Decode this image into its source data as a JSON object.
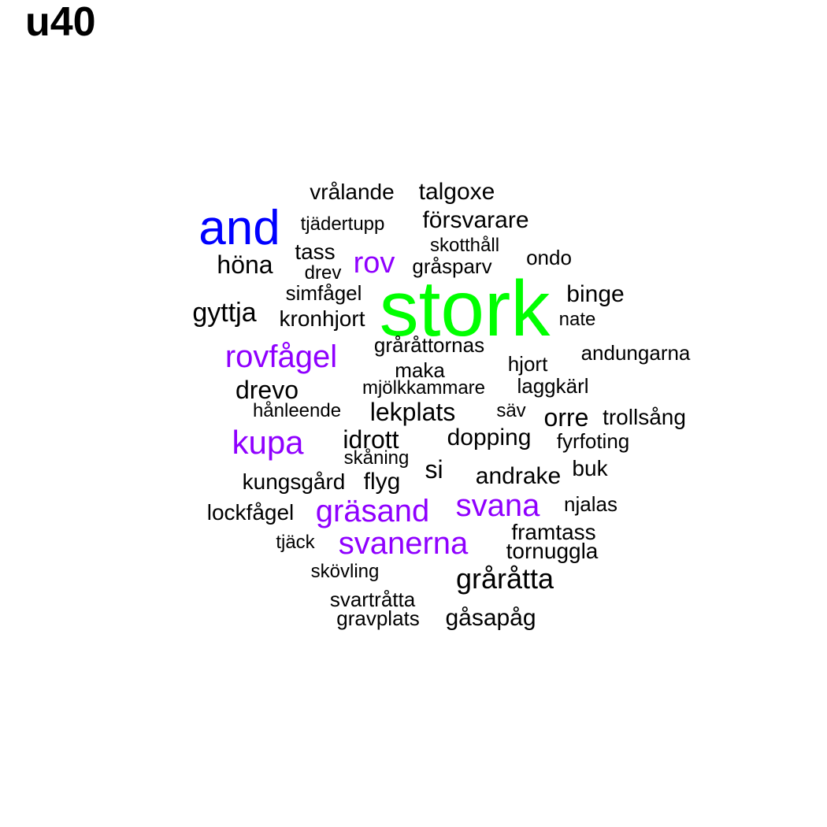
{
  "title": "u40",
  "colors": {
    "black": "#000000",
    "green": "#00ff00",
    "blue": "#0000ff",
    "purple": "#8f00ff"
  },
  "words": [
    {
      "text": "stork",
      "color": "green"
    },
    {
      "text": "and",
      "color": "blue"
    },
    {
      "text": "rov",
      "color": "purple"
    },
    {
      "text": "rovfågel",
      "color": "purple"
    },
    {
      "text": "kupa",
      "color": "purple"
    },
    {
      "text": "svana",
      "color": "purple"
    },
    {
      "text": "gräsand",
      "color": "purple"
    },
    {
      "text": "svanerna",
      "color": "purple"
    },
    {
      "text": "vrålande",
      "color": "black"
    },
    {
      "text": "talgoxe",
      "color": "black"
    },
    {
      "text": "tjädertupp",
      "color": "black"
    },
    {
      "text": "försvarare",
      "color": "black"
    },
    {
      "text": "skotthåll",
      "color": "black"
    },
    {
      "text": "tass",
      "color": "black"
    },
    {
      "text": "höna",
      "color": "black"
    },
    {
      "text": "drev",
      "color": "black"
    },
    {
      "text": "gråsparv",
      "color": "black"
    },
    {
      "text": "ondo",
      "color": "black"
    },
    {
      "text": "simfågel",
      "color": "black"
    },
    {
      "text": "binge",
      "color": "black"
    },
    {
      "text": "gyttja",
      "color": "black"
    },
    {
      "text": "kronhjort",
      "color": "black"
    },
    {
      "text": "nate",
      "color": "black"
    },
    {
      "text": "gråråttornas",
      "color": "black"
    },
    {
      "text": "andungarna",
      "color": "black"
    },
    {
      "text": "hjort",
      "color": "black"
    },
    {
      "text": "maka",
      "color": "black"
    },
    {
      "text": "drevo",
      "color": "black"
    },
    {
      "text": "mjölkkammare",
      "color": "black"
    },
    {
      "text": "laggkärl",
      "color": "black"
    },
    {
      "text": "hånleende",
      "color": "black"
    },
    {
      "text": "lekplats",
      "color": "black"
    },
    {
      "text": "säv",
      "color": "black"
    },
    {
      "text": "orre",
      "color": "black"
    },
    {
      "text": "trollsång",
      "color": "black"
    },
    {
      "text": "idrott",
      "color": "black"
    },
    {
      "text": "dopping",
      "color": "black"
    },
    {
      "text": "fyrfoting",
      "color": "black"
    },
    {
      "text": "skåning",
      "color": "black"
    },
    {
      "text": "si",
      "color": "black"
    },
    {
      "text": "buk",
      "color": "black"
    },
    {
      "text": "kungsgård",
      "color": "black"
    },
    {
      "text": "flyg",
      "color": "black"
    },
    {
      "text": "andrake",
      "color": "black"
    },
    {
      "text": "njalas",
      "color": "black"
    },
    {
      "text": "lockfågel",
      "color": "black"
    },
    {
      "text": "framtass",
      "color": "black"
    },
    {
      "text": "tjäck",
      "color": "black"
    },
    {
      "text": "tornuggla",
      "color": "black"
    },
    {
      "text": "skövling",
      "color": "black"
    },
    {
      "text": "gråråtta",
      "color": "black"
    },
    {
      "text": "svartråtta",
      "color": "black"
    },
    {
      "text": "gravplats",
      "color": "black"
    },
    {
      "text": "gåsapåg",
      "color": "black"
    }
  ]
}
